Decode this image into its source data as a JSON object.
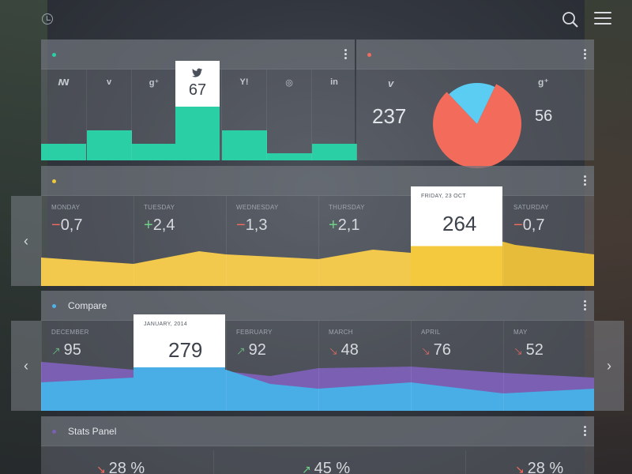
{
  "topbar": {
    "clock_icon": "clock-icon",
    "search_icon": "search-icon",
    "menu_icon": "hamburger-menu-icon"
  },
  "social_panel": {
    "dot_color": "#2bcfa6",
    "networks": [
      {
        "icon": "stumbleupon-icon",
        "glyph": "ꟿ",
        "level": 0.18
      },
      {
        "icon": "vimeo-icon",
        "glyph": "v",
        "level": 0.33
      },
      {
        "icon": "google-plus-icon",
        "glyph": "g⁺",
        "level": 0.18
      },
      {
        "icon": "twitter-icon",
        "glyph": "🐦",
        "level": 0.62
      },
      {
        "icon": "yahoo-icon",
        "glyph": "Y!",
        "level": 0.33
      },
      {
        "icon": "dribbble-icon",
        "glyph": "◎",
        "level": 0.08
      },
      {
        "icon": "linkedin-icon",
        "glyph": "in",
        "level": 0.18
      }
    ],
    "highlight_value": "67"
  },
  "pie_panel": {
    "dot_color": "#ef6c60",
    "left_icon": "vimeo-icon",
    "right_icon": "google-plus-icon",
    "left_value": "237",
    "right_value": "56",
    "slices": [
      {
        "label": "vimeo",
        "value": 237,
        "color": "#f26b5b"
      },
      {
        "label": "google-plus",
        "value": 56,
        "color": "#5bcdf3"
      }
    ]
  },
  "weekly_panel": {
    "dot_color": "#f0c93a",
    "days": [
      {
        "label": "MONDAY",
        "sign": "−",
        "value": "0,7",
        "trend": "red"
      },
      {
        "label": "TUESDAY",
        "sign": "+",
        "value": "2,4",
        "trend": "green"
      },
      {
        "label": "WEDNESDAY",
        "sign": "−",
        "value": "1,3",
        "trend": "red"
      },
      {
        "label": "THURSDAY",
        "sign": "+",
        "value": "2,1",
        "trend": "green"
      }
    ],
    "highlight_label": "FRIDAY, 23 OCT",
    "highlight_value": "264",
    "last_day": {
      "label": "SATURDAY",
      "sign": "−",
      "value": "0,7"
    },
    "area_color": "#f2c94c"
  },
  "compare_panel": {
    "title": "Compare",
    "dot_color": "#4fb3e8",
    "months": [
      {
        "label": "DECEMBER",
        "arrow": "↗",
        "value": "95",
        "trend": "up"
      }
    ],
    "highlight_label": "JANUARY, 2014",
    "highlight_value": "279",
    "months_after": [
      {
        "label": "FEBRUARY",
        "arrow": "↗",
        "value": "92",
        "trend": "up"
      },
      {
        "label": "MARCH",
        "arrow": "↘",
        "value": "48",
        "trend": "down"
      },
      {
        "label": "APRIL",
        "arrow": "↘",
        "value": "76",
        "trend": "down"
      },
      {
        "label": "MAY",
        "arrow": "↘",
        "value": "52",
        "trend": "down"
      }
    ],
    "blue_color": "#4aaee6",
    "purple_color": "#7a5fb3"
  },
  "stats_panel": {
    "title": "Stats Panel",
    "dot_color": "#7a5fb3",
    "items": [
      {
        "arrow": "↘",
        "value": "28 %",
        "trend": "down"
      },
      {
        "arrow": "↗",
        "value": "45 %",
        "trend": "up"
      },
      {
        "arrow": "↘",
        "value": "28 %",
        "trend": "down"
      }
    ]
  },
  "nav": {
    "prev": "‹",
    "next": "›"
  }
}
